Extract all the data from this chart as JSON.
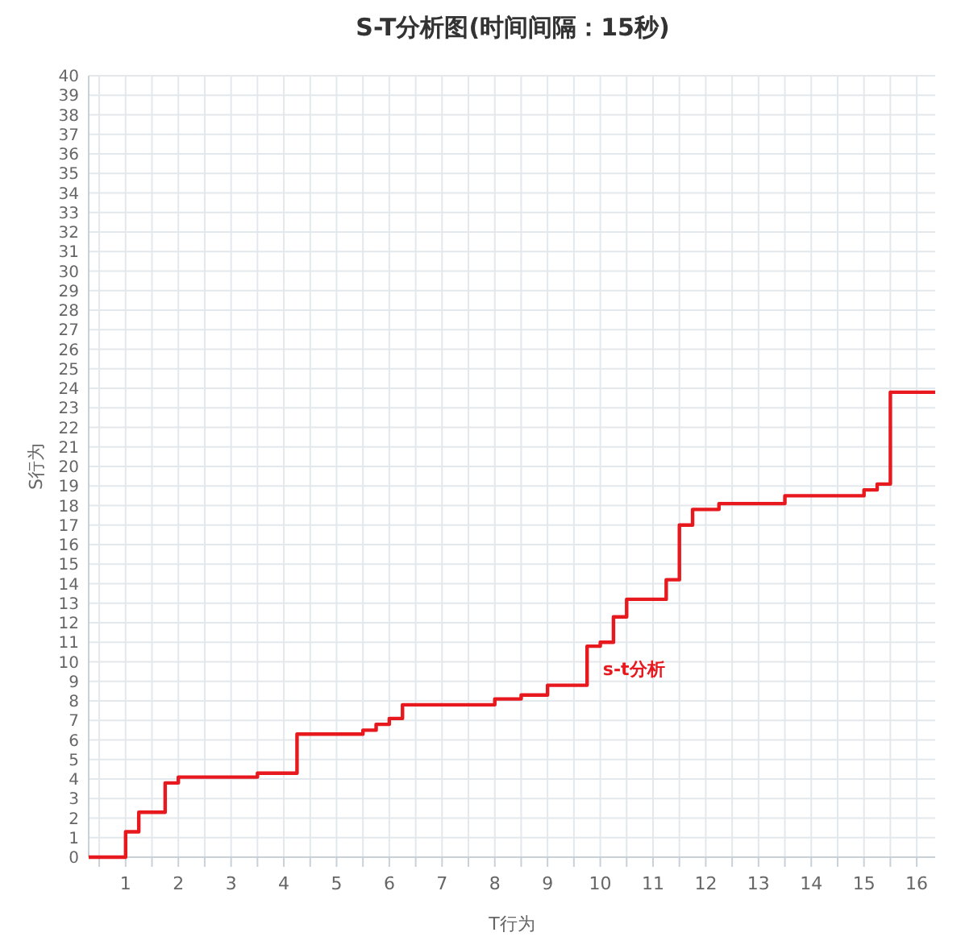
{
  "chart_data": {
    "type": "step",
    "title": "S-T分析图(时间间隔：15秒)",
    "xlabel": "T行为",
    "ylabel": "S行为",
    "x": [
      0.3,
      1.0,
      1.25,
      1.75,
      2.0,
      3.5,
      4.25,
      5.5,
      5.75,
      6.0,
      6.25,
      8.0,
      8.5,
      9.0,
      9.75,
      10.0,
      10.25,
      10.5,
      11.25,
      11.5,
      11.75,
      12.25,
      13.5,
      15.0,
      15.25,
      15.5,
      16.35
    ],
    "series": [
      {
        "name": "s-t分析",
        "color": "#e8191e",
        "values": [
          0,
          1.3,
          2.3,
          3.8,
          4.1,
          4.3,
          6.3,
          6.5,
          6.8,
          7.1,
          7.8,
          8.1,
          8.3,
          8.8,
          10.8,
          11.0,
          12.3,
          13.2,
          14.2,
          17.0,
          17.8,
          18.1,
          18.5,
          18.8,
          19.1,
          23.8,
          23.8
        ]
      }
    ],
    "xlim": [
      0.3,
      16.35
    ],
    "xticks": [
      {
        "value": 0.5,
        "label": null
      },
      1,
      {
        "value": 1.5,
        "label": null
      },
      2,
      {
        "value": 2.5,
        "label": null
      },
      3,
      {
        "value": 3.5,
        "label": null
      },
      4,
      {
        "value": 4.5,
        "label": null
      },
      5,
      {
        "value": 5.5,
        "label": null
      },
      6,
      {
        "value": 6.5,
        "label": null
      },
      7,
      {
        "value": 7.5,
        "label": null
      },
      8,
      {
        "value": 8.5,
        "label": null
      },
      9,
      {
        "value": 9.5,
        "label": null
      },
      10,
      {
        "value": 10.5,
        "label": null
      },
      11,
      {
        "value": 11.5,
        "label": null
      },
      12,
      {
        "value": 12.5,
        "label": null
      },
      13,
      {
        "value": 13.5,
        "label": null
      },
      14,
      {
        "value": 14.5,
        "label": null
      },
      15,
      {
        "value": 15.5,
        "label": null
      },
      16
    ],
    "ylim": [
      0,
      40
    ],
    "yticks": [
      0,
      1,
      2,
      3,
      4,
      5,
      6,
      7,
      8,
      9,
      10,
      11,
      12,
      13,
      14,
      15,
      16,
      17,
      18,
      19,
      20,
      21,
      22,
      23,
      24,
      25,
      26,
      27,
      28,
      29,
      30,
      31,
      32,
      33,
      34,
      35,
      36,
      37,
      38,
      39,
      40
    ],
    "grid": true,
    "marker": "none",
    "line_style": "solid"
  }
}
